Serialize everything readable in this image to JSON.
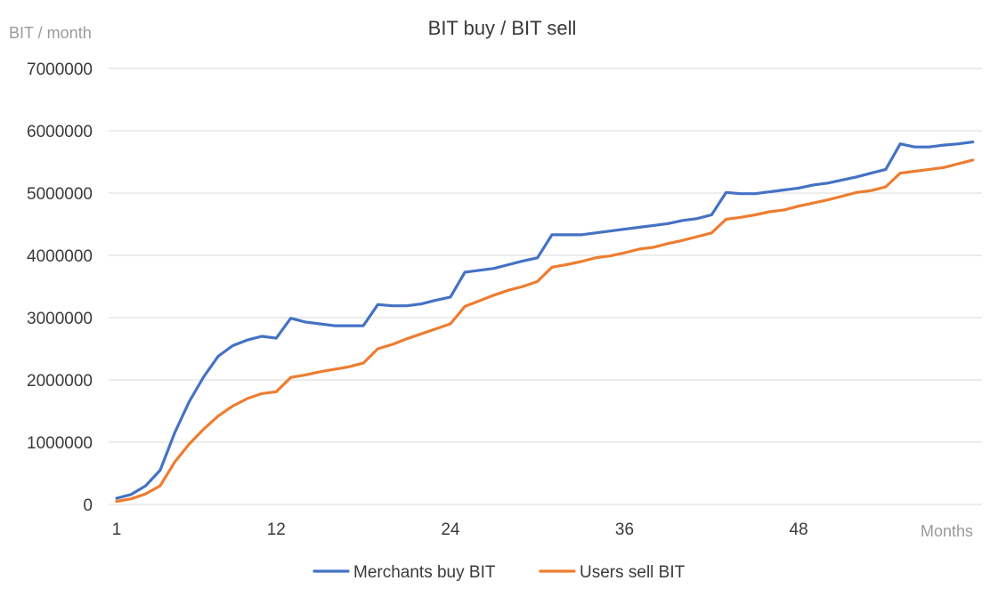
{
  "chart_data": {
    "type": "line",
    "title": "BIT buy / BIT sell",
    "ylabel": "BIT / month",
    "xlabel": "Months",
    "ylim": [
      0,
      7000000
    ],
    "yticks": [
      "0",
      "1000000",
      "2000000",
      "3000000",
      "4000000",
      "5000000",
      "6000000",
      "7000000"
    ],
    "xlim": [
      1,
      60
    ],
    "xticks": [
      "1",
      "12",
      "24",
      "36",
      "48"
    ],
    "grid": true,
    "legend": "bottom",
    "x": [
      1,
      2,
      3,
      4,
      5,
      6,
      7,
      8,
      9,
      10,
      11,
      12,
      13,
      14,
      15,
      16,
      17,
      18,
      19,
      20,
      21,
      22,
      23,
      24,
      25,
      26,
      27,
      28,
      29,
      30,
      31,
      32,
      33,
      34,
      35,
      36,
      37,
      38,
      39,
      40,
      41,
      42,
      43,
      44,
      45,
      46,
      47,
      48,
      49,
      50,
      51,
      52,
      53,
      54,
      55,
      56,
      57,
      58,
      59,
      60
    ],
    "series": [
      {
        "name": "Merchants buy BIT",
        "color": "#4472c4",
        "values": [
          100000,
          160000,
          300000,
          550000,
          1150000,
          1650000,
          2050000,
          2380000,
          2550000,
          2640000,
          2700000,
          2670000,
          2990000,
          2930000,
          2900000,
          2870000,
          2870000,
          2870000,
          3210000,
          3190000,
          3190000,
          3220000,
          3280000,
          3330000,
          3730000,
          3760000,
          3790000,
          3850000,
          3910000,
          3960000,
          4330000,
          4330000,
          4330000,
          4360000,
          4390000,
          4420000,
          4450000,
          4480000,
          4510000,
          4560000,
          4590000,
          4650000,
          5010000,
          4990000,
          4990000,
          5020000,
          5050000,
          5080000,
          5130000,
          5160000,
          5210000,
          5260000,
          5320000,
          5380000,
          5790000,
          5740000,
          5740000,
          5770000,
          5790000,
          5820000
        ]
      },
      {
        "name": "Users sell BIT",
        "color": "#ed7d31",
        "values": [
          50000,
          90000,
          170000,
          300000,
          680000,
          970000,
          1210000,
          1420000,
          1580000,
          1700000,
          1780000,
          1810000,
          2040000,
          2080000,
          2130000,
          2170000,
          2210000,
          2270000,
          2500000,
          2570000,
          2660000,
          2740000,
          2820000,
          2900000,
          3180000,
          3270000,
          3360000,
          3440000,
          3500000,
          3580000,
          3810000,
          3850000,
          3900000,
          3960000,
          3990000,
          4040000,
          4100000,
          4130000,
          4190000,
          4240000,
          4300000,
          4360000,
          4580000,
          4610000,
          4650000,
          4700000,
          4730000,
          4790000,
          4840000,
          4890000,
          4950000,
          5010000,
          5040000,
          5100000,
          5320000,
          5350000,
          5380000,
          5410000,
          5470000,
          5530000
        ]
      }
    ]
  }
}
